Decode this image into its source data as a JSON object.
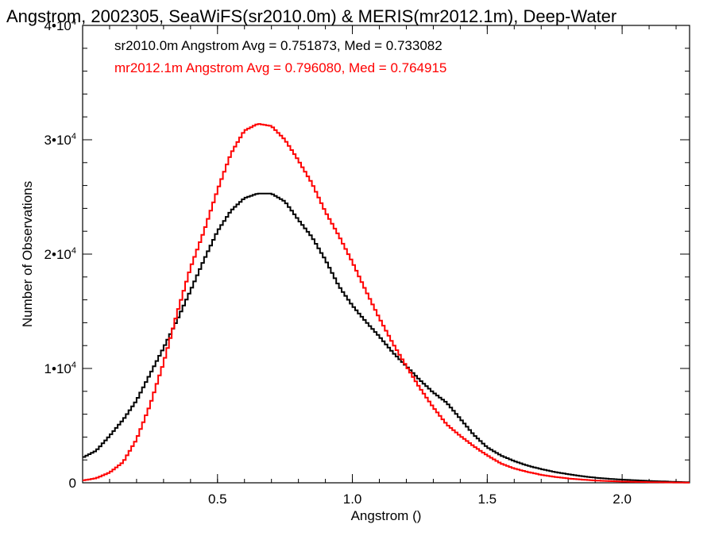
{
  "chart_data": {
    "type": "line",
    "title": "Angstrom, 2002305, SeaWiFS(sr2010.0m) & MERIS(mr2012.1m), Deep-Water",
    "xlabel": "Angstrom ()",
    "ylabel": "Number of Observations",
    "xlim": [
      0.0,
      2.25
    ],
    "ylim": [
      0,
      40000
    ],
    "x_ticks": [
      {
        "v": 0.5,
        "label": "0.5"
      },
      {
        "v": 1.0,
        "label": "1.0"
      },
      {
        "v": 1.5,
        "label": "1.5"
      },
      {
        "v": 2.0,
        "label": "2.0"
      }
    ],
    "y_ticks": [
      {
        "v": 0,
        "label": "0",
        "exp": ""
      },
      {
        "v": 10000,
        "label": "1•10",
        "exp": "4"
      },
      {
        "v": 20000,
        "label": "2•10",
        "exp": "4"
      },
      {
        "v": 30000,
        "label": "3•10",
        "exp": "4"
      },
      {
        "v": 40000,
        "label": "4•10",
        "exp": "4"
      }
    ],
    "grid": false,
    "legend_position": "top-left",
    "series": [
      {
        "name": "sr2010.0m",
        "legend_text": "sr2010.0m Angstrom Avg = 0.751873, Med = 0.733082",
        "color": "#000000",
        "x": [
          0.0,
          0.05,
          0.1,
          0.15,
          0.2,
          0.25,
          0.3,
          0.35,
          0.4,
          0.45,
          0.5,
          0.55,
          0.6,
          0.65,
          0.7,
          0.75,
          0.8,
          0.85,
          0.9,
          0.95,
          1.0,
          1.05,
          1.1,
          1.15,
          1.2,
          1.25,
          1.3,
          1.35,
          1.4,
          1.45,
          1.5,
          1.55,
          1.6,
          1.65,
          1.7,
          1.75,
          1.8,
          1.85,
          1.9,
          1.95,
          2.0,
          2.05,
          2.1,
          2.15,
          2.2,
          2.25
        ],
        "y": [
          2200,
          2800,
          4100,
          5500,
          7200,
          9500,
          11800,
          14200,
          16800,
          19500,
          22000,
          23800,
          24900,
          25300,
          25300,
          24600,
          23000,
          21500,
          19500,
          17200,
          15500,
          14100,
          12800,
          11400,
          10200,
          9000,
          7900,
          7000,
          5600,
          4200,
          3100,
          2400,
          1900,
          1500,
          1200,
          950,
          750,
          580,
          450,
          350,
          280,
          220,
          160,
          120,
          80,
          50
        ]
      },
      {
        "name": "mr2012.1m",
        "legend_text": "mr2012.1m Angstrom Avg = 0.796080, Med = 0.764915",
        "color": "#ff0000",
        "x": [
          0.0,
          0.05,
          0.1,
          0.15,
          0.2,
          0.25,
          0.3,
          0.35,
          0.4,
          0.45,
          0.5,
          0.55,
          0.6,
          0.65,
          0.7,
          0.75,
          0.8,
          0.85,
          0.9,
          0.95,
          1.0,
          1.05,
          1.1,
          1.15,
          1.2,
          1.25,
          1.3,
          1.35,
          1.4,
          1.45,
          1.5,
          1.55,
          1.6,
          1.65,
          1.7,
          1.75,
          1.8,
          1.85,
          1.9,
          1.95,
          2.0,
          2.05,
          2.1,
          2.15,
          2.2,
          2.25
        ],
        "y": [
          200,
          400,
          900,
          1800,
          3800,
          6800,
          10500,
          14800,
          18800,
          22000,
          25600,
          28800,
          30800,
          31400,
          31200,
          30000,
          28200,
          26200,
          23700,
          21600,
          19300,
          16800,
          14400,
          12200,
          10200,
          8300,
          6600,
          5100,
          4100,
          3200,
          2400,
          1700,
          1250,
          950,
          700,
          520,
          380,
          280,
          200,
          150,
          110,
          80,
          60,
          40,
          30,
          20
        ]
      }
    ]
  }
}
